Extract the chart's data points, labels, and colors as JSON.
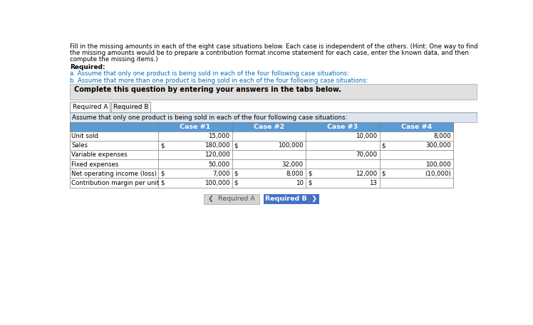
{
  "intro_lines": [
    "Fill in the missing amounts in each of the eight case situations below. Each case is independent of the others. (Hint: One way to find",
    "the missing amounts would be to prepare a contribution format income statement for each case, enter the known data, and then",
    "compute the missing items.)"
  ],
  "required_label": "Required:",
  "req_a": "a. Assume that only one product is being sold in each of the four following case situations:",
  "req_b": "b. Assume that more than one product is being sold in each of the four following case situations:",
  "complete_text": "Complete this question by entering your answers in the tabs below.",
  "tab1": "Required A",
  "tab2": "Required B",
  "assume_text": "Assume that only one product is being sold in each of the four following case situations:",
  "col_headers": [
    "Case #1",
    "Case #2",
    "Case #3",
    "Case #4"
  ],
  "row_labels": [
    "Unit sold",
    "Sales",
    "Variable expenses",
    "Fixed expenses",
    "Net operating income (loss)",
    "Contribution margin per unit"
  ],
  "table_data": [
    [
      "",
      "15,000",
      "",
      "",
      "",
      "10,000",
      "",
      "8,000"
    ],
    [
      "$",
      "180,000",
      "$",
      "100,000",
      "",
      "",
      "$",
      "300,000"
    ],
    [
      "",
      "120,000",
      "",
      "",
      "",
      "70,000",
      "",
      ""
    ],
    [
      "",
      "50,000",
      "",
      "32,000",
      "",
      "",
      "",
      "100,000"
    ],
    [
      "$",
      "7,000",
      "$",
      "8,000",
      "$",
      "12,000",
      "$",
      "(10,000)"
    ],
    [
      "$",
      "100,000",
      "$",
      "10",
      "$",
      "13",
      "",
      ""
    ]
  ],
  "header_bg": "#5b9bd5",
  "header_fg": "#ffffff",
  "assume_bg": "#dce6f1",
  "complete_bg": "#e0e0e0",
  "tab_active_bg": "#ffffff",
  "tab_inactive_bg": "#f2f2f2",
  "btn_req_a_bg": "#d4d4d4",
  "btn_req_b_bg": "#4472c4",
  "border_color": "#a0a0a0",
  "text_color": "#000000",
  "blue_text_color": "#0070c0",
  "table_border": "#7f7f7f",
  "page_bg": "#ffffff"
}
